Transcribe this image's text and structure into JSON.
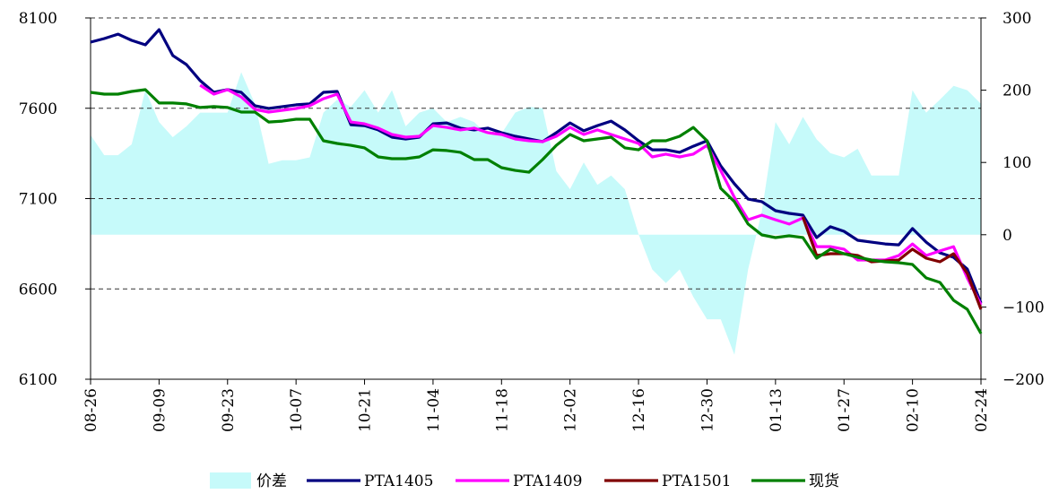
{
  "chart_data": {
    "type": "line",
    "categories": [
      "08-26",
      null,
      null,
      null,
      null,
      "09-09",
      null,
      null,
      null,
      null,
      "09-23",
      null,
      null,
      null,
      null,
      "10-07",
      null,
      null,
      null,
      null,
      "10-21",
      null,
      null,
      null,
      null,
      "11-04",
      null,
      null,
      null,
      null,
      "11-18",
      null,
      null,
      null,
      null,
      "12-02",
      null,
      null,
      null,
      null,
      "12-16",
      null,
      null,
      null,
      null,
      "12-30",
      null,
      null,
      null,
      null,
      "01-13",
      null,
      null,
      null,
      null,
      "01-27",
      null,
      null,
      null,
      null,
      "02-10",
      null,
      null,
      null,
      null,
      "02-24"
    ],
    "ylim": [
      6100,
      8100
    ],
    "yticks": [
      6100,
      6600,
      7100,
      7600,
      8100
    ],
    "y2lim": [
      -200,
      300
    ],
    "y2ticks": [
      300,
      200,
      100,
      0,
      {
        "value": -100,
        "label": "−100"
      },
      {
        "value": -200,
        "label": "−200"
      }
    ],
    "grid": true,
    "legend": "bottom",
    "series": [
      {
        "name": "价差",
        "type": "area",
        "axis": "y2",
        "color": "#c6fafa",
        "values": [
          138,
          110,
          110,
          125,
          200,
          156,
          135,
          150,
          169,
          169,
          169,
          225,
          181,
          98,
          103,
          103,
          107,
          169,
          187,
          177,
          200,
          169,
          200,
          150,
          169,
          175,
          156,
          163,
          156,
          138,
          140,
          169,
          177,
          175,
          88,
          63,
          100,
          69,
          82,
          63,
          1,
          -48,
          -67,
          -48,
          -86,
          -117,
          -117,
          -166,
          -48,
          32,
          156,
          125,
          163,
          132,
          113,
          107,
          119,
          82,
          82,
          82,
          200,
          169,
          187,
          206,
          200,
          181
        ]
      },
      {
        "name": "PTA1405",
        "type": "line",
        "color": "#000080",
        "values": [
          7966,
          7986,
          8010,
          7976,
          7951,
          8035,
          7892,
          7842,
          7753,
          7688,
          7703,
          7688,
          7614,
          7599,
          7609,
          7619,
          7624,
          7688,
          7693,
          7509,
          7504,
          7480,
          7440,
          7430,
          7440,
          7514,
          7519,
          7490,
          7480,
          7490,
          7465,
          7445,
          7430,
          7415,
          7465,
          7519,
          7475,
          7504,
          7529,
          7480,
          7420,
          7370,
          7370,
          7356,
          7390,
          7420,
          7281,
          7182,
          7097,
          7083,
          7033,
          7018,
          7008,
          6884,
          6944,
          6919,
          6869,
          6859,
          6849,
          6844,
          6934,
          6859,
          6800,
          6775,
          6710,
          6522
        ]
      },
      {
        "name": "PTA1409",
        "type": "line",
        "color": "#ff00ff",
        "values": [
          null,
          null,
          null,
          null,
          null,
          null,
          null,
          null,
          7728,
          7678,
          7703,
          7663,
          7594,
          7579,
          7589,
          7599,
          7614,
          7653,
          7678,
          7524,
          7514,
          7490,
          7455,
          7440,
          7445,
          7504,
          7494,
          7480,
          7490,
          7465,
          7455,
          7430,
          7420,
          7415,
          7445,
          7494,
          7455,
          7480,
          7455,
          7430,
          7405,
          7331,
          7346,
          7331,
          7346,
          7395,
          7256,
          7107,
          6983,
          7008,
          6983,
          6959,
          6993,
          6834,
          6834,
          6820,
          6760,
          6760,
          6760,
          6785,
          6849,
          6785,
          6810,
          6834,
          6661,
          6512
        ]
      },
      {
        "name": "PTA1501",
        "type": "line",
        "color": "#800000",
        "values": [
          null,
          null,
          null,
          null,
          null,
          null,
          null,
          null,
          null,
          null,
          null,
          null,
          null,
          null,
          null,
          null,
          null,
          null,
          null,
          null,
          null,
          null,
          null,
          null,
          null,
          null,
          null,
          null,
          null,
          null,
          null,
          null,
          null,
          null,
          null,
          null,
          null,
          null,
          null,
          null,
          null,
          null,
          null,
          null,
          null,
          null,
          null,
          null,
          null,
          null,
          null,
          null,
          6998,
          6785,
          6795,
          6795,
          6785,
          6750,
          6755,
          6760,
          6820,
          6770,
          6750,
          6795,
          6686,
          6487
        ]
      },
      {
        "name": "现货",
        "type": "line",
        "color": "#008000",
        "values": [
          7688,
          7678,
          7678,
          7693,
          7703,
          7629,
          7629,
          7624,
          7604,
          7609,
          7604,
          7579,
          7579,
          7524,
          7529,
          7539,
          7539,
          7420,
          7405,
          7395,
          7381,
          7331,
          7321,
          7321,
          7331,
          7370,
          7366,
          7356,
          7316,
          7316,
          7271,
          7256,
          7246,
          7316,
          7395,
          7455,
          7420,
          7430,
          7440,
          7381,
          7370,
          7420,
          7420,
          7445,
          7494,
          7420,
          7157,
          7083,
          6959,
          6899,
          6884,
          6894,
          6884,
          6770,
          6820,
          6795,
          6775,
          6760,
          6750,
          6745,
          6735,
          6661,
          6636,
          6537,
          6487,
          6353
        ]
      }
    ]
  }
}
